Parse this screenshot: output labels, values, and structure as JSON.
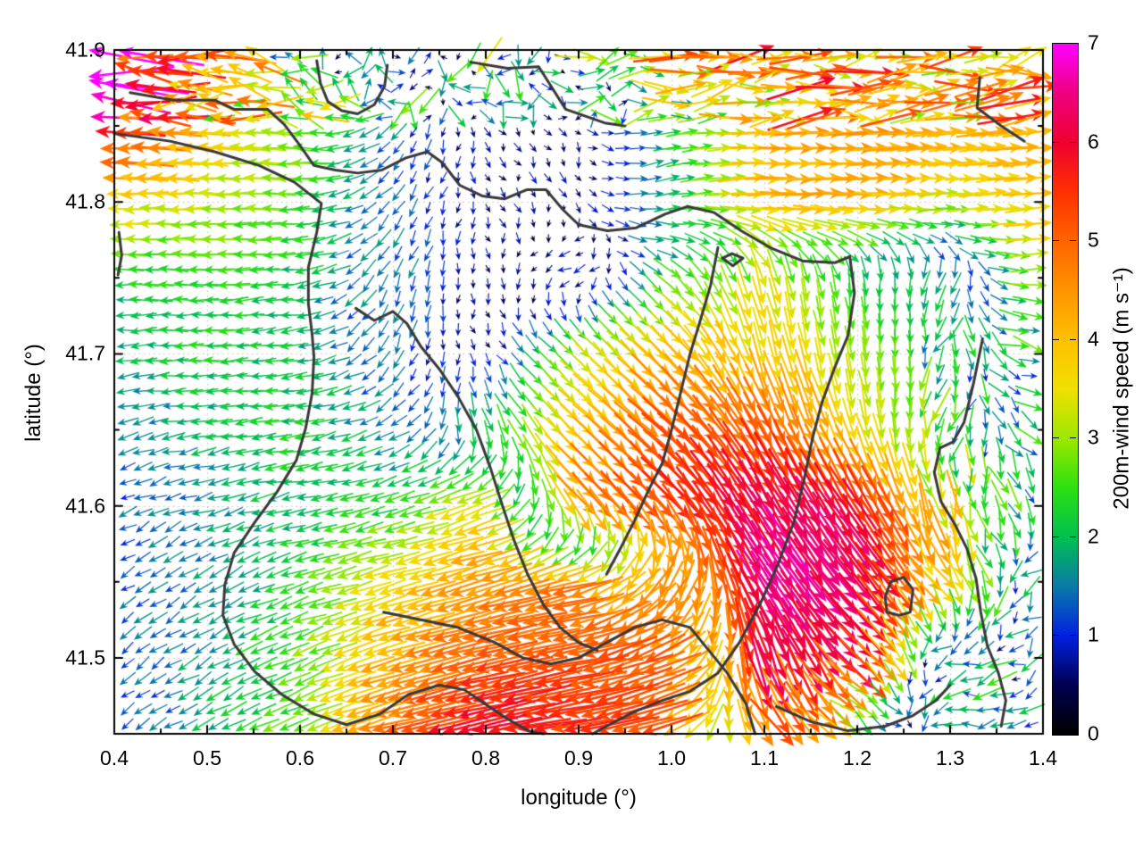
{
  "chart_data": {
    "type": "quiver",
    "title": "",
    "xlabel": "longitude (°)",
    "ylabel": "latitude (°)",
    "xlim": [
      0.4,
      1.4
    ],
    "ylim": [
      41.45,
      41.9
    ],
    "grid": "dotted-major",
    "legend_position": "right-colorbar",
    "xticks": {
      "values": [
        0.4,
        0.5,
        0.6,
        0.7,
        0.8,
        0.9,
        1.0,
        1.1,
        1.2,
        1.3,
        1.4
      ],
      "labels": [
        "0.4",
        "0.5",
        "0.6",
        "0.7",
        "0.8",
        "0.9",
        "1.0",
        "1.1",
        "1.2",
        "1.3",
        "1.4"
      ],
      "minor_step": 0.05
    },
    "yticks": {
      "values": [
        41.9,
        41.8,
        41.7,
        41.6,
        41.5
      ],
      "labels": [
        "41.9",
        "41.8",
        "41.7",
        "41.6",
        "41.5"
      ],
      "minor_step": 0.05
    },
    "colorbar": {
      "label": "200m-wind speed (m s⁻¹)",
      "min": 0,
      "max": 7,
      "tick_values": [
        0,
        1,
        2,
        3,
        4,
        5,
        6,
        7
      ],
      "tick_labels": [
        "0",
        "1",
        "2",
        "3",
        "4",
        "5",
        "6",
        "7"
      ],
      "palette": [
        [
          0.0,
          "#000000"
        ],
        [
          0.5,
          "#000050"
        ],
        [
          1.0,
          "#0020e0"
        ],
        [
          1.5,
          "#0a7aa8"
        ],
        [
          2.0,
          "#00c050"
        ],
        [
          2.5,
          "#2ce010"
        ],
        [
          3.0,
          "#9ce800"
        ],
        [
          3.5,
          "#f0e000"
        ],
        [
          4.0,
          "#ffc000"
        ],
        [
          4.5,
          "#ff9400"
        ],
        [
          5.0,
          "#ff6400"
        ],
        [
          5.5,
          "#ff3000"
        ],
        [
          6.0,
          "#f00030"
        ],
        [
          6.5,
          "#ee0080"
        ],
        [
          7.0,
          "#ff00ff"
        ]
      ]
    },
    "wind_field": {
      "comment": "u=eastward, v=northward (m/s); coarse control grid read from the figure, rows north(41.90) to south(41.45), cols lon 0.4 to 1.4 step 0.1",
      "lon_start": 0.4,
      "lon_step": 0.1,
      "ncols": 11,
      "lat_start": 41.9,
      "lat_step": -0.05,
      "nrows": 10,
      "uv": [
        [
          [
            -6.5,
            0.5
          ],
          [
            -5,
            0.3
          ],
          [
            -2,
            1
          ],
          [
            0,
            1
          ],
          [
            -1,
            -2
          ],
          [
            2,
            0.3
          ],
          [
            4,
            0.8
          ],
          [
            4.2,
            0.6
          ],
          [
            4.3,
            0.3
          ],
          [
            3.8,
            0.4
          ],
          [
            4,
            0.5
          ]
        ],
        [
          [
            -6,
            0.3
          ],
          [
            -4,
            0.1
          ],
          [
            -3,
            0.2
          ],
          [
            -1,
            -1
          ],
          [
            0.3,
            -0.5
          ],
          [
            0.2,
            -0.4
          ],
          [
            2,
            0.3
          ],
          [
            4.2,
            0.2
          ],
          [
            4.4,
            0.2
          ],
          [
            4.2,
            0.2
          ],
          [
            4.3,
            0.4
          ]
        ],
        [
          [
            -3.8,
            0
          ],
          [
            -3.2,
            0
          ],
          [
            -2.6,
            0
          ],
          [
            -0.8,
            -1.2
          ],
          [
            0.2,
            -0.5
          ],
          [
            0.3,
            -0.6
          ],
          [
            1.8,
            0.5
          ],
          [
            4,
            0
          ],
          [
            4.2,
            0
          ],
          [
            3.2,
            0.2
          ],
          [
            4,
            0.3
          ]
        ],
        [
          [
            -2.2,
            0
          ],
          [
            -2.4,
            0
          ],
          [
            -2,
            -0.3
          ],
          [
            -0.6,
            -1.4
          ],
          [
            0.2,
            -0.6
          ],
          [
            -1,
            -0.3
          ],
          [
            2,
            -1.5
          ],
          [
            0.8,
            -3.4
          ],
          [
            0.3,
            -2.2
          ],
          [
            -0.8,
            -1.6
          ],
          [
            3.6,
            0.3
          ]
        ],
        [
          [
            -1.8,
            -0.2
          ],
          [
            -2.2,
            -0.1
          ],
          [
            -2,
            -0.2
          ],
          [
            -0.5,
            -1.2
          ],
          [
            0.1,
            -0.5
          ],
          [
            2.2,
            -2.2
          ],
          [
            3,
            -3
          ],
          [
            1,
            -3.8
          ],
          [
            0.5,
            -3
          ],
          [
            -0.5,
            -2
          ],
          [
            2.5,
            -0.5
          ]
        ],
        [
          [
            -1.4,
            -0.4
          ],
          [
            -1.8,
            -0.3
          ],
          [
            -2.2,
            -0.3
          ],
          [
            -1.5,
            -0.8
          ],
          [
            0.8,
            -2.2
          ],
          [
            3,
            -2.8
          ],
          [
            3.8,
            -3.4
          ],
          [
            2.5,
            -4.5
          ],
          [
            1,
            -3.6
          ],
          [
            -1,
            -2.2
          ],
          [
            2,
            -0.5
          ]
        ],
        [
          [
            -1.2,
            -0.5
          ],
          [
            -1.5,
            -0.5
          ],
          [
            -2,
            -0.4
          ],
          [
            -2.2,
            -0.6
          ],
          [
            -3.5,
            -1.2
          ],
          [
            3,
            -3.5
          ],
          [
            4,
            -4
          ],
          [
            3,
            -5.5
          ],
          [
            3.5,
            -5
          ],
          [
            0.5,
            -3.4
          ],
          [
            1,
            -1.5
          ]
        ],
        [
          [
            -1,
            -0.6
          ],
          [
            -1.4,
            -0.8
          ],
          [
            -2.2,
            -0.6
          ],
          [
            -3.6,
            -1
          ],
          [
            -4.3,
            -1.2
          ],
          [
            -4.5,
            -1
          ],
          [
            -2,
            -4.5
          ],
          [
            3.8,
            -5.5
          ],
          [
            4,
            -5
          ],
          [
            2,
            -3
          ],
          [
            -1.5,
            -1
          ]
        ],
        [
          [
            -0.9,
            -0.7
          ],
          [
            -1.5,
            -0.9
          ],
          [
            -2.4,
            -1
          ],
          [
            -4,
            -1.3
          ],
          [
            -5,
            -1.2
          ],
          [
            -5.2,
            -1
          ],
          [
            -4.5,
            -2
          ],
          [
            2,
            -6
          ],
          [
            4.5,
            -4
          ],
          [
            -2,
            -0.5
          ],
          [
            -1,
            -0.8
          ]
        ],
        [
          [
            -0.8,
            -0.6
          ],
          [
            -1.6,
            -0.8
          ],
          [
            -2.6,
            -1
          ],
          [
            -4.8,
            -1.2
          ],
          [
            -6,
            -1.3
          ],
          [
            -5.5,
            -1
          ],
          [
            -5,
            -1.5
          ],
          [
            3,
            -4
          ],
          [
            2,
            -1
          ],
          [
            -2.2,
            -0.3
          ],
          [
            -1.2,
            -0.5
          ]
        ]
      ]
    },
    "contours_lonlat": [
      [
        [
          0.417,
          41.872
        ],
        [
          0.464,
          41.867
        ],
        [
          0.508,
          41.867
        ],
        [
          0.529,
          41.861
        ],
        [
          0.565,
          41.861
        ],
        [
          0.583,
          41.851
        ],
        [
          0.599,
          41.838
        ],
        [
          0.615,
          41.824
        ],
        [
          0.638,
          41.821
        ],
        [
          0.662,
          41.819
        ],
        [
          0.688,
          41.821
        ],
        [
          0.714,
          41.829
        ],
        [
          0.737,
          41.833
        ],
        [
          0.753,
          41.826
        ],
        [
          0.772,
          41.811
        ],
        [
          0.796,
          41.804
        ],
        [
          0.82,
          41.802
        ],
        [
          0.844,
          41.808
        ],
        [
          0.865,
          41.808
        ],
        [
          0.883,
          41.795
        ],
        [
          0.9,
          41.785
        ],
        [
          0.931,
          41.781
        ],
        [
          0.962,
          41.783
        ],
        [
          0.993,
          41.792
        ],
        [
          1.017,
          41.797
        ],
        [
          1.046,
          41.793
        ],
        [
          1.075,
          41.781
        ],
        [
          1.106,
          41.77
        ],
        [
          1.142,
          41.761
        ],
        [
          1.176,
          41.76
        ],
        [
          1.192,
          41.764
        ]
      ],
      [
        [
          0.4,
          41.845
        ],
        [
          0.46,
          41.84
        ],
        [
          0.508,
          41.833
        ],
        [
          0.556,
          41.824
        ],
        [
          0.594,
          41.813
        ],
        [
          0.623,
          41.799
        ],
        [
          0.618,
          41.78
        ],
        [
          0.609,
          41.757
        ],
        [
          0.609,
          41.733
        ],
        [
          0.613,
          41.713
        ],
        [
          0.615,
          41.698
        ],
        [
          0.613,
          41.674
        ],
        [
          0.606,
          41.651
        ],
        [
          0.596,
          41.63
        ],
        [
          0.575,
          41.609
        ],
        [
          0.551,
          41.589
        ],
        [
          0.529,
          41.569
        ],
        [
          0.519,
          41.548
        ],
        [
          0.517,
          41.528
        ],
        [
          0.529,
          41.509
        ],
        [
          0.551,
          41.491
        ],
        [
          0.58,
          41.476
        ],
        [
          0.615,
          41.463
        ],
        [
          0.65,
          41.456
        ],
        [
          0.686,
          41.463
        ],
        [
          0.717,
          41.476
        ],
        [
          0.75,
          41.482
        ],
        [
          0.777,
          41.479
        ],
        [
          0.801,
          41.469
        ],
        [
          0.823,
          41.46
        ],
        [
          0.846,
          41.452
        ],
        [
          0.862,
          41.45
        ]
      ],
      [
        [
          0.618,
          41.893
        ],
        [
          0.622,
          41.878
        ],
        [
          0.63,
          41.866
        ],
        [
          0.645,
          41.86
        ],
        [
          0.662,
          41.858
        ],
        [
          0.68,
          41.864
        ],
        [
          0.691,
          41.876
        ],
        [
          0.694,
          41.89
        ]
      ],
      [
        [
          0.784,
          41.892
        ],
        [
          0.823,
          41.888
        ],
        [
          0.857,
          41.889
        ],
        [
          0.886,
          41.861
        ],
        [
          0.928,
          41.852
        ],
        [
          0.95,
          41.85
        ]
      ],
      [
        [
          1.332,
          41.882
        ],
        [
          1.329,
          41.862
        ],
        [
          1.355,
          41.85
        ],
        [
          1.38,
          41.84
        ]
      ],
      [
        [
          1.192,
          41.764
        ],
        [
          1.197,
          41.74
        ],
        [
          1.19,
          41.712
        ],
        [
          1.175,
          41.69
        ],
        [
          1.162,
          41.668
        ],
        [
          1.152,
          41.645
        ],
        [
          1.143,
          41.618
        ],
        [
          1.132,
          41.59
        ],
        [
          1.115,
          41.562
        ],
        [
          1.095,
          41.535
        ],
        [
          1.073,
          41.51
        ],
        [
          1.05,
          41.49
        ],
        [
          1.02,
          41.478
        ],
        [
          0.99,
          41.472
        ],
        [
          0.958,
          41.464
        ],
        [
          0.93,
          41.455
        ],
        [
          0.915,
          41.45
        ]
      ],
      [
        [
          0.69,
          41.53
        ],
        [
          0.73,
          41.525
        ],
        [
          0.77,
          41.52
        ],
        [
          0.81,
          41.51
        ],
        [
          0.84,
          41.5
        ],
        [
          0.87,
          41.496
        ],
        [
          0.9,
          41.5
        ],
        [
          0.93,
          41.51
        ],
        [
          0.96,
          41.52
        ],
        [
          0.99,
          41.525
        ],
        [
          1.02,
          41.52
        ],
        [
          1.04,
          41.505
        ],
        [
          1.06,
          41.49
        ],
        [
          1.08,
          41.47
        ],
        [
          1.09,
          41.45
        ]
      ],
      [
        [
          1.232,
          41.53
        ],
        [
          1.245,
          41.528
        ],
        [
          1.257,
          41.53
        ],
        [
          1.26,
          41.545
        ],
        [
          1.25,
          41.553
        ],
        [
          1.236,
          41.55
        ],
        [
          1.23,
          41.54
        ],
        [
          1.232,
          41.53
        ]
      ],
      [
        [
          1.113,
          41.468
        ],
        [
          1.15,
          41.458
        ],
        [
          1.19,
          41.452
        ],
        [
          1.23,
          41.455
        ],
        [
          1.26,
          41.462
        ],
        [
          1.285,
          41.472
        ],
        [
          1.3,
          41.482
        ]
      ],
      [
        [
          1.055,
          41.763
        ],
        [
          1.065,
          41.766
        ],
        [
          1.077,
          41.763
        ],
        [
          1.066,
          41.758
        ],
        [
          1.055,
          41.763
        ]
      ],
      [
        [
          0.405,
          41.78
        ],
        [
          0.408,
          41.765
        ],
        [
          0.404,
          41.752
        ]
      ],
      [
        [
          1.335,
          41.71
        ],
        [
          1.325,
          41.68
        ],
        [
          1.315,
          41.655
        ],
        [
          1.303,
          41.642
        ],
        [
          1.289,
          41.638
        ],
        [
          1.283,
          41.622
        ],
        [
          1.29,
          41.603
        ],
        [
          1.305,
          41.588
        ],
        [
          1.318,
          41.572
        ],
        [
          1.328,
          41.552
        ],
        [
          1.333,
          41.53
        ],
        [
          1.34,
          41.508
        ],
        [
          1.352,
          41.49
        ],
        [
          1.36,
          41.472
        ],
        [
          1.355,
          41.455
        ]
      ],
      [
        [
          0.66,
          41.73
        ],
        [
          0.68,
          41.722
        ],
        [
          0.7,
          41.728
        ],
        [
          0.715,
          41.72
        ],
        [
          0.73,
          41.705
        ],
        [
          0.75,
          41.69
        ],
        [
          0.77,
          41.672
        ],
        [
          0.79,
          41.65
        ],
        [
          0.805,
          41.625
        ],
        [
          0.818,
          41.6
        ],
        [
          0.83,
          41.578
        ],
        [
          0.845,
          41.555
        ],
        [
          0.862,
          41.535
        ],
        [
          0.88,
          41.52
        ],
        [
          0.9,
          41.51
        ],
        [
          0.92,
          41.505
        ]
      ],
      [
        [
          1.05,
          41.77
        ],
        [
          1.042,
          41.745
        ],
        [
          1.03,
          41.72
        ],
        [
          1.02,
          41.7
        ],
        [
          1.01,
          41.675
        ],
        [
          1.0,
          41.65
        ],
        [
          0.99,
          41.628
        ],
        [
          0.975,
          41.61
        ],
        [
          0.96,
          41.59
        ],
        [
          0.945,
          41.572
        ],
        [
          0.93,
          41.555
        ]
      ]
    ]
  }
}
